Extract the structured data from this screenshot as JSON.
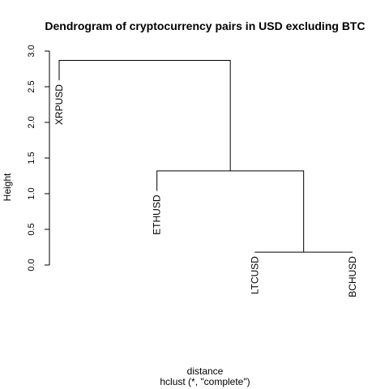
{
  "chart_data": {
    "type": "dendrogram",
    "title": "Dendrogram of cryptocurrency pairs in USD excluding BTC",
    "xlabel": "distance",
    "sublabel": "hclust (*, \"complete\")",
    "ylabel": "Height",
    "ylim": [
      0,
      3.0
    ],
    "yticks": [
      "0.0",
      "0.5",
      "1.0",
      "1.5",
      "2.0",
      "2.5",
      "3.0"
    ],
    "leaves": [
      {
        "label": "XRPUSD",
        "height": 2.59
      },
      {
        "label": "ETHUSD",
        "height": 1.04
      },
      {
        "label": "LTCUSD",
        "height": 0.18
      },
      {
        "label": "BCHUSD",
        "height": 0.18
      }
    ],
    "merges": [
      {
        "members": [
          "LTCUSD",
          "BCHUSD"
        ],
        "height": 0.18
      },
      {
        "members": [
          "ETHUSD",
          "LTCUSD",
          "BCHUSD"
        ],
        "height": 1.32
      },
      {
        "members": [
          "XRPUSD",
          "ETHUSD",
          "LTCUSD",
          "BCHUSD"
        ],
        "height": 2.87
      }
    ]
  }
}
